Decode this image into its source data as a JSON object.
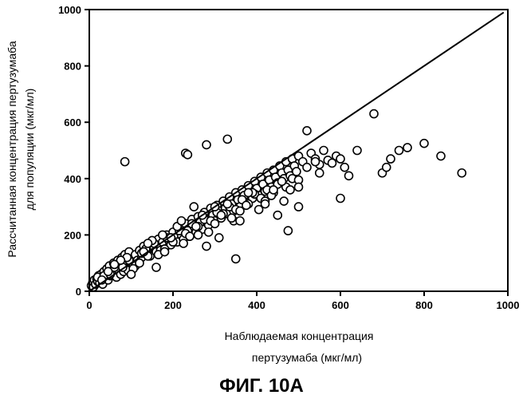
{
  "figure_caption": "ФИГ. 10A",
  "chart_data": {
    "type": "scatter",
    "title": "",
    "xlabel_lines": [
      "Наблюдаемая концентрация",
      "пертузумаба (мкг/мл)"
    ],
    "ylabel_lines": [
      "Рассчитанная концентрация пертузумаба",
      "для популяции (мкг/мл)"
    ],
    "xlim": [
      0,
      1000
    ],
    "ylim": [
      0,
      1000
    ],
    "x_ticks": [
      0,
      200,
      400,
      600,
      800,
      1000
    ],
    "y_ticks": [
      0,
      200,
      400,
      600,
      800,
      1000
    ],
    "grid": false,
    "legend": "none",
    "reference_line": {
      "type": "identity",
      "from": [
        0,
        0
      ],
      "to": [
        990,
        990
      ]
    },
    "marker": {
      "shape": "open-circle",
      "stroke": "#000000",
      "fill": "#ffffff"
    },
    "series": [
      {
        "x": [
          5,
          8,
          10,
          12,
          15,
          18,
          20,
          22,
          25,
          28,
          30,
          32,
          35,
          38,
          40,
          42,
          45,
          48,
          50,
          55,
          58,
          60,
          62,
          65,
          68,
          70,
          72,
          75,
          78,
          80,
          82,
          85,
          88,
          90,
          92,
          95,
          98,
          100,
          105,
          110,
          115,
          120,
          125,
          130,
          135,
          140,
          145,
          150,
          155,
          160,
          165,
          170,
          175,
          180,
          185,
          190,
          195,
          200,
          205,
          210,
          215,
          220,
          225,
          230,
          235,
          240,
          245,
          250,
          255,
          260,
          265,
          270,
          275,
          280,
          285,
          290,
          295,
          300,
          305,
          310,
          315,
          320,
          325,
          330,
          335,
          340,
          345,
          350,
          355,
          360,
          365,
          370,
          375,
          380,
          385,
          390,
          395,
          400,
          405,
          410,
          415,
          420,
          425,
          430,
          435,
          440,
          445,
          450,
          455,
          460,
          465,
          470,
          475,
          480,
          485,
          490,
          495,
          500,
          510,
          520,
          530,
          540,
          550,
          560,
          570,
          580,
          590,
          600,
          610,
          620,
          20,
          35,
          50,
          65,
          80,
          95,
          110,
          125,
          140,
          155,
          170,
          185,
          200,
          215,
          230,
          245,
          260,
          275,
          290,
          305,
          320,
          335,
          350,
          365,
          380,
          395,
          410,
          425,
          440,
          455,
          470,
          485,
          500,
          30,
          60,
          90,
          120,
          150,
          180,
          210,
          240,
          270,
          300,
          330,
          360,
          390,
          420,
          450,
          480,
          45,
          75,
          105,
          135,
          165,
          195,
          225,
          255,
          285,
          315,
          345,
          375,
          405,
          435,
          465,
          60,
          100,
          140,
          180,
          220,
          260,
          300,
          340,
          380,
          420,
          460,
          500,
          85,
          475,
          350,
          230,
          310,
          280,
          160,
          540,
          680,
          700,
          710,
          720,
          740,
          760,
          800,
          840,
          890,
          450,
          500,
          550,
          600,
          640,
          330,
          280,
          175,
          235,
          250,
          130,
          440,
          360,
          520
        ],
        "y": [
          20,
          30,
          15,
          40,
          25,
          45,
          35,
          55,
          30,
          60,
          50,
          25,
          70,
          45,
          60,
          80,
          40,
          90,
          55,
          70,
          100,
          65,
          85,
          50,
          110,
          75,
          95,
          60,
          120,
          85,
          70,
          130,
          90,
          105,
          75,
          140,
          100,
          115,
          95,
          130,
          110,
          145,
          120,
          160,
          135,
          150,
          125,
          170,
          155,
          140,
          185,
          160,
          175,
          150,
          200,
          180,
          165,
          210,
          190,
          175,
          225,
          200,
          185,
          240,
          215,
          195,
          255,
          230,
          210,
          265,
          245,
          220,
          280,
          255,
          235,
          295,
          270,
          250,
          305,
          285,
          260,
          320,
          295,
          275,
          335,
          310,
          285,
          350,
          325,
          300,
          360,
          340,
          315,
          375,
          350,
          330,
          390,
          365,
          340,
          405,
          380,
          355,
          420,
          395,
          370,
          430,
          405,
          385,
          445,
          420,
          400,
          460,
          430,
          410,
          470,
          445,
          425,
          480,
          460,
          440,
          490,
          470,
          450,
          500,
          465,
          455,
          480,
          470,
          440,
          410,
          50,
          55,
          60,
          95,
          85,
          110,
          90,
          135,
          125,
          170,
          145,
          190,
          175,
          215,
          205,
          240,
          230,
          255,
          250,
          280,
          275,
          300,
          290,
          325,
          310,
          345,
          330,
          360,
          350,
          385,
          370,
          400,
          395,
          40,
          85,
          120,
          100,
          180,
          150,
          230,
          195,
          270,
          240,
          310,
          285,
          350,
          320,
          380,
          360,
          70,
          110,
          80,
          150,
          130,
          190,
          170,
          230,
          210,
          270,
          250,
          305,
          290,
          340,
          320,
          95,
          60,
          170,
          140,
          250,
          200,
          300,
          260,
          350,
          310,
          390,
          370,
          460,
          215,
          115,
          490,
          190,
          160,
          85,
          460,
          630,
          420,
          440,
          470,
          500,
          510,
          525,
          480,
          420,
          270,
          300,
          420,
          330,
          500,
          540,
          520,
          200,
          485,
          300,
          140,
          360,
          250,
          570
        ]
      }
    ]
  }
}
